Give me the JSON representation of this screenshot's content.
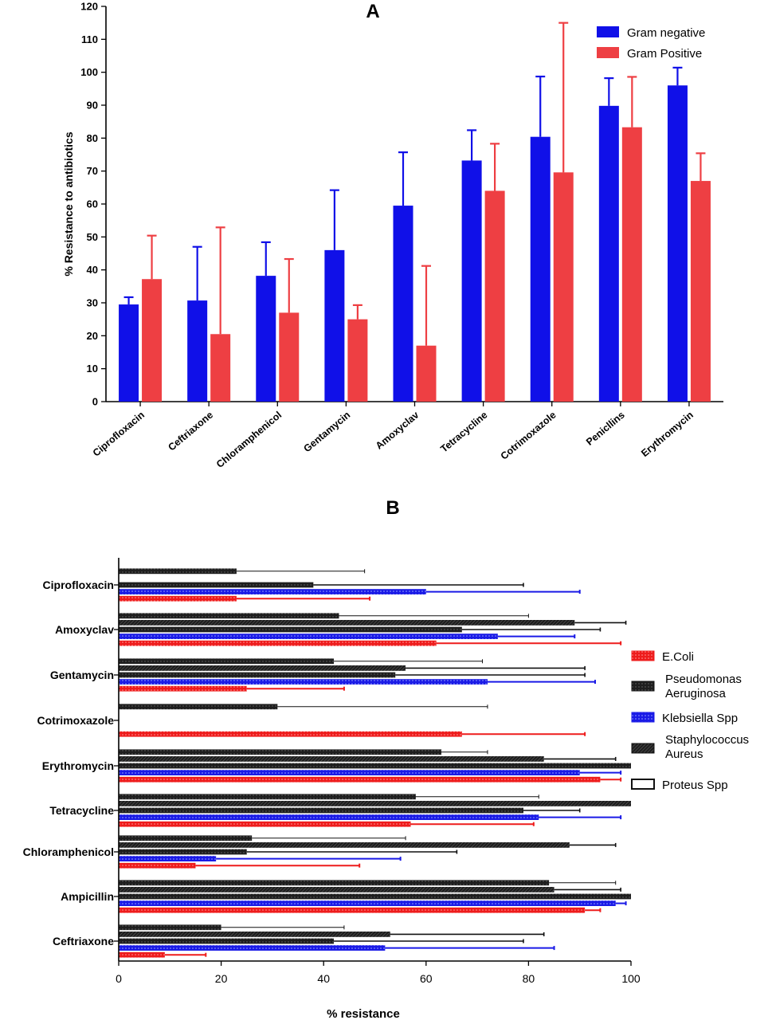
{
  "chart_data": [
    {
      "type": "bar",
      "orientation": "vertical",
      "title": "A",
      "ylabel": "% Resistance to antibiotics",
      "xlabel": "",
      "ylim": [
        0,
        120
      ],
      "yticks": [
        0,
        10,
        20,
        30,
        40,
        50,
        60,
        70,
        80,
        90,
        100,
        110,
        120
      ],
      "categories": [
        "Ciprofloxacin",
        "Ceftriaxone",
        "Chloramphenicol",
        "Gentamycin",
        "Amoxyclav",
        "Tetracycline",
        "Cotrimoxazole",
        "Penicllins",
        "Erythromycin"
      ],
      "legend_position": "top-right",
      "grid": false,
      "series": [
        {
          "name": "Gram negative",
          "color": "#1010e8",
          "values": [
            29.5,
            30.7,
            38.2,
            46,
            59.5,
            73.2,
            80.4,
            89.8,
            96
          ],
          "errors": [
            2.2,
            16.3,
            10.2,
            18.2,
            16.2,
            9.2,
            18.3,
            8.4,
            5.4
          ]
        },
        {
          "name": "Gram Positive",
          "color": "#ee3f43",
          "values": [
            37.2,
            20.5,
            27,
            25,
            17,
            64,
            69.6,
            83.3,
            67
          ],
          "errors": [
            13.2,
            32.4,
            16.3,
            4.3,
            24.2,
            14.3,
            45.4,
            15.3,
            8.4
          ]
        }
      ]
    },
    {
      "type": "bar",
      "orientation": "horizontal",
      "title": "B",
      "xlabel": "% resistance",
      "ylabel": "",
      "xlim": [
        0,
        100
      ],
      "xticks": [
        0,
        20,
        40,
        60,
        80,
        100
      ],
      "categories": [
        "Ciprofloxacin",
        "Amoxyclav",
        "Gentamycin",
        "Cotrimoxazole",
        "Erythromycin",
        "Tetracycline",
        "Chloramphenicol",
        "Ampicillin",
        "Ceftriaxone"
      ],
      "legend_position": "right",
      "grid": false,
      "series": [
        {
          "name": "E.Coli",
          "color": "#ee1c1c",
          "values": [
            23,
            62,
            25,
            67,
            94,
            57,
            15,
            91,
            9
          ],
          "errors": [
            26,
            36,
            19,
            24,
            4,
            24,
            32,
            3,
            8
          ]
        },
        {
          "name": "Klebsiella Spp",
          "color": "#1a1ae6",
          "values": [
            60,
            74,
            72,
            null,
            90,
            82,
            19,
            97,
            52
          ],
          "errors": [
            30,
            15,
            21,
            null,
            8,
            16,
            36,
            2,
            33
          ]
        },
        {
          "name": "Proteus Spp",
          "color": "#222222",
          "values": [
            38,
            67,
            54,
            null,
            100,
            79,
            25,
            100,
            42
          ],
          "errors": [
            41,
            27,
            37,
            null,
            0,
            11,
            41,
            0,
            37
          ]
        },
        {
          "name": "Staphylococcus Aureus",
          "color": "#222222",
          "values": [
            null,
            89,
            56,
            null,
            83,
            100,
            88,
            85,
            53
          ],
          "errors": [
            null,
            10,
            35,
            null,
            14,
            0,
            9,
            13,
            30
          ]
        },
        {
          "name": "Pseudomonas Aeruginosa",
          "color": "#222222",
          "values": [
            23,
            43,
            42,
            31,
            63,
            58,
            26,
            84,
            20
          ],
          "errors": [
            25,
            37,
            29,
            41,
            9,
            24,
            30,
            13,
            24
          ]
        }
      ]
    }
  ],
  "chartA": {
    "title": "A",
    "ylabel": "% Resistance to antibiotics",
    "legend": [
      "Gram negative",
      "Gram Positive"
    ]
  },
  "chartB": {
    "title": "B",
    "xlabel": "% resistance",
    "legend": [
      "E.Coli",
      "Pseudomonas",
      "Aeruginosa",
      "Klebsiella Spp",
      "Staphylococcus",
      "Aureus",
      "Proteus Spp"
    ]
  }
}
